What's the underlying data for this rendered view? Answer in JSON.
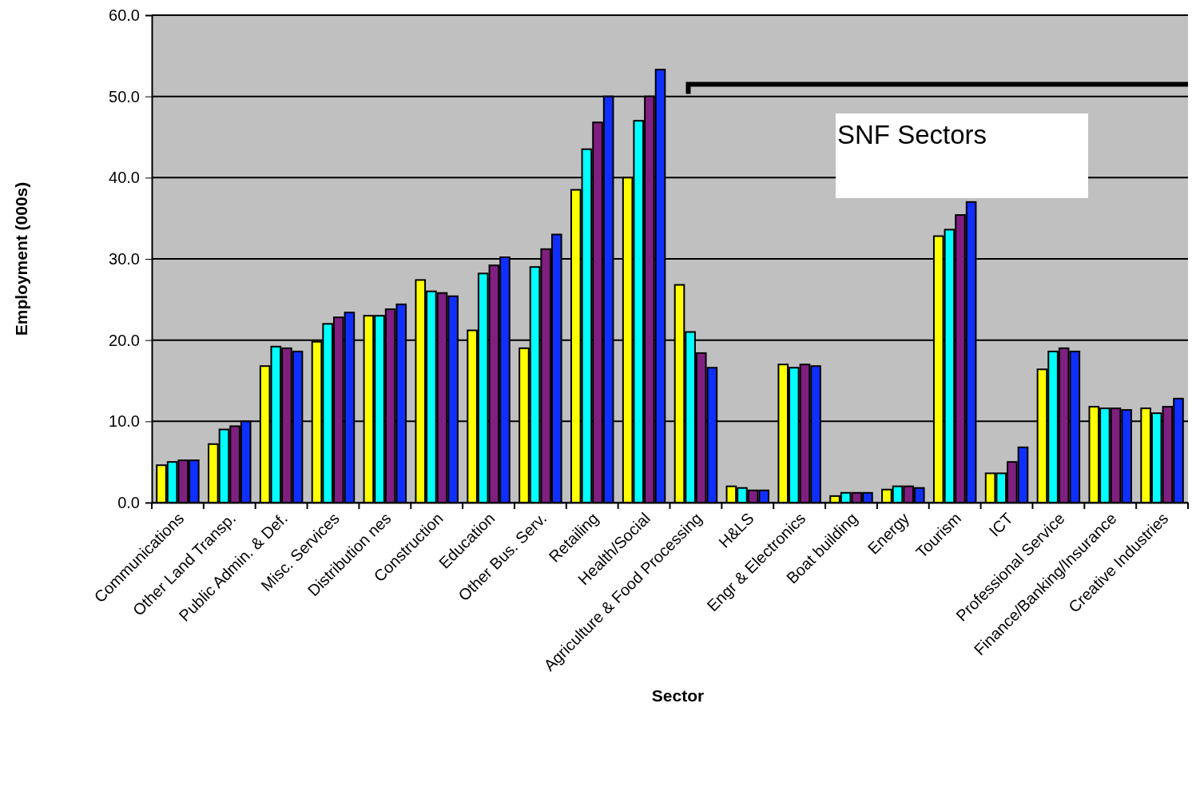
{
  "chart_data": {
    "type": "bar",
    "xlabel": "Sector",
    "ylabel": "Employment (000s)",
    "categories": [
      "Communications",
      "Other Land Transp.",
      "Public Admin. & Def.",
      "Misc. Services",
      "Distribution nes",
      "Construction",
      "Education",
      "Other Bus. Serv.",
      "Retailing",
      "Health/Social",
      "Agriculture & Food Processing",
      "H&LS",
      "Engr & Electronics",
      "Boat building",
      "Energy",
      "Tourism",
      "ICT",
      "Professional Service",
      "Finance/Banking/Insurance",
      "Creative Industries"
    ],
    "series": [
      {
        "color": "#ffff00",
        "values": [
          4.6,
          7.2,
          16.8,
          19.8,
          23.0,
          27.4,
          21.2,
          19.0,
          38.5,
          40.0,
          26.8,
          2.0,
          17.0,
          0.8,
          1.6,
          32.8,
          3.6,
          16.4,
          11.8,
          11.6
        ]
      },
      {
        "color": "#00ffff",
        "values": [
          5.0,
          9.0,
          19.2,
          22.0,
          23.0,
          26.0,
          28.2,
          29.0,
          43.5,
          47.0,
          21.0,
          1.8,
          16.6,
          1.2,
          2.0,
          33.6,
          3.6,
          18.6,
          11.6,
          11.0
        ]
      },
      {
        "color": "#7f1f7f",
        "values": [
          5.2,
          9.4,
          19.0,
          22.8,
          23.8,
          25.8,
          29.2,
          31.2,
          46.8,
          50.0,
          18.4,
          1.5,
          17.0,
          1.2,
          2.0,
          35.4,
          5.0,
          19.0,
          11.6,
          11.8
        ]
      },
      {
        "color": "#0f2fff",
        "values": [
          5.2,
          10.0,
          18.6,
          23.4,
          24.4,
          25.4,
          30.2,
          33.0,
          50.0,
          53.3,
          16.6,
          1.5,
          16.8,
          1.2,
          1.8,
          37.0,
          6.8,
          18.6,
          11.4,
          12.8
        ]
      }
    ],
    "ylim": [
      0,
      60
    ],
    "yticks": [
      {
        "value": 0,
        "label": "0.0"
      },
      {
        "value": 10,
        "label": "10.0"
      },
      {
        "value": 20,
        "label": "20.0"
      },
      {
        "value": 30,
        "label": "30.0"
      },
      {
        "value": 40,
        "label": "40.0"
      },
      {
        "value": 50,
        "label": "50.0"
      },
      {
        "value": 60,
        "label": "60.0"
      }
    ],
    "grid": "y",
    "annotations": [
      "SNF Sectors"
    ]
  }
}
